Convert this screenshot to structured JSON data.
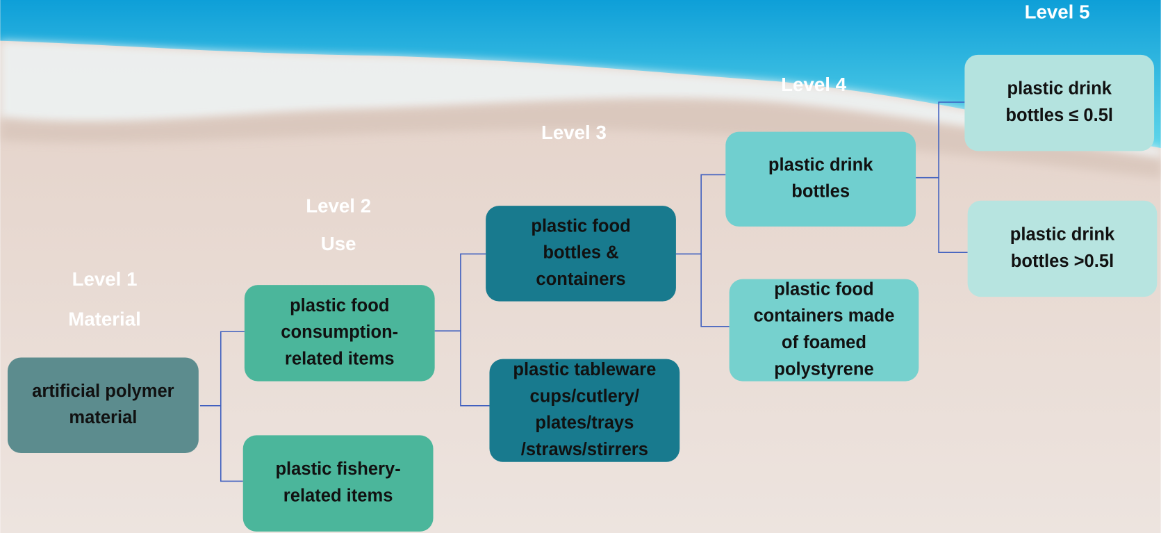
{
  "levels": [
    {
      "lines": [
        "Level 1",
        "Material"
      ]
    },
    {
      "lines": [
        "Level 2",
        "Use"
      ]
    },
    {
      "lines": [
        "Level 3"
      ]
    },
    {
      "lines": [
        "Level 4"
      ]
    },
    {
      "lines": [
        "Level 5"
      ]
    }
  ],
  "nodes": [
    {
      "lines": [
        "artificial polymer",
        "material"
      ]
    },
    {
      "lines": [
        "plastic food",
        "consumption-",
        "related items"
      ]
    },
    {
      "lines": [
        "plastic fishery-",
        "related items"
      ]
    },
    {
      "lines": [
        "plastic food",
        "bottles &",
        "containers"
      ]
    },
    {
      "lines": [
        "plastic tableware",
        "cups/cutlery/",
        "plates/trays",
        "/straws/stirrers"
      ]
    },
    {
      "lines": [
        "plastic drink",
        "bottles"
      ]
    },
    {
      "lines": [
        "plastic food",
        "containers made",
        "of foamed",
        "polystyrene"
      ]
    },
    {
      "lines": [
        "plastic drink",
        "bottles ≤ 0.5l"
      ]
    },
    {
      "lines": [
        "plastic drink",
        "bottles >0.5l"
      ]
    }
  ]
}
